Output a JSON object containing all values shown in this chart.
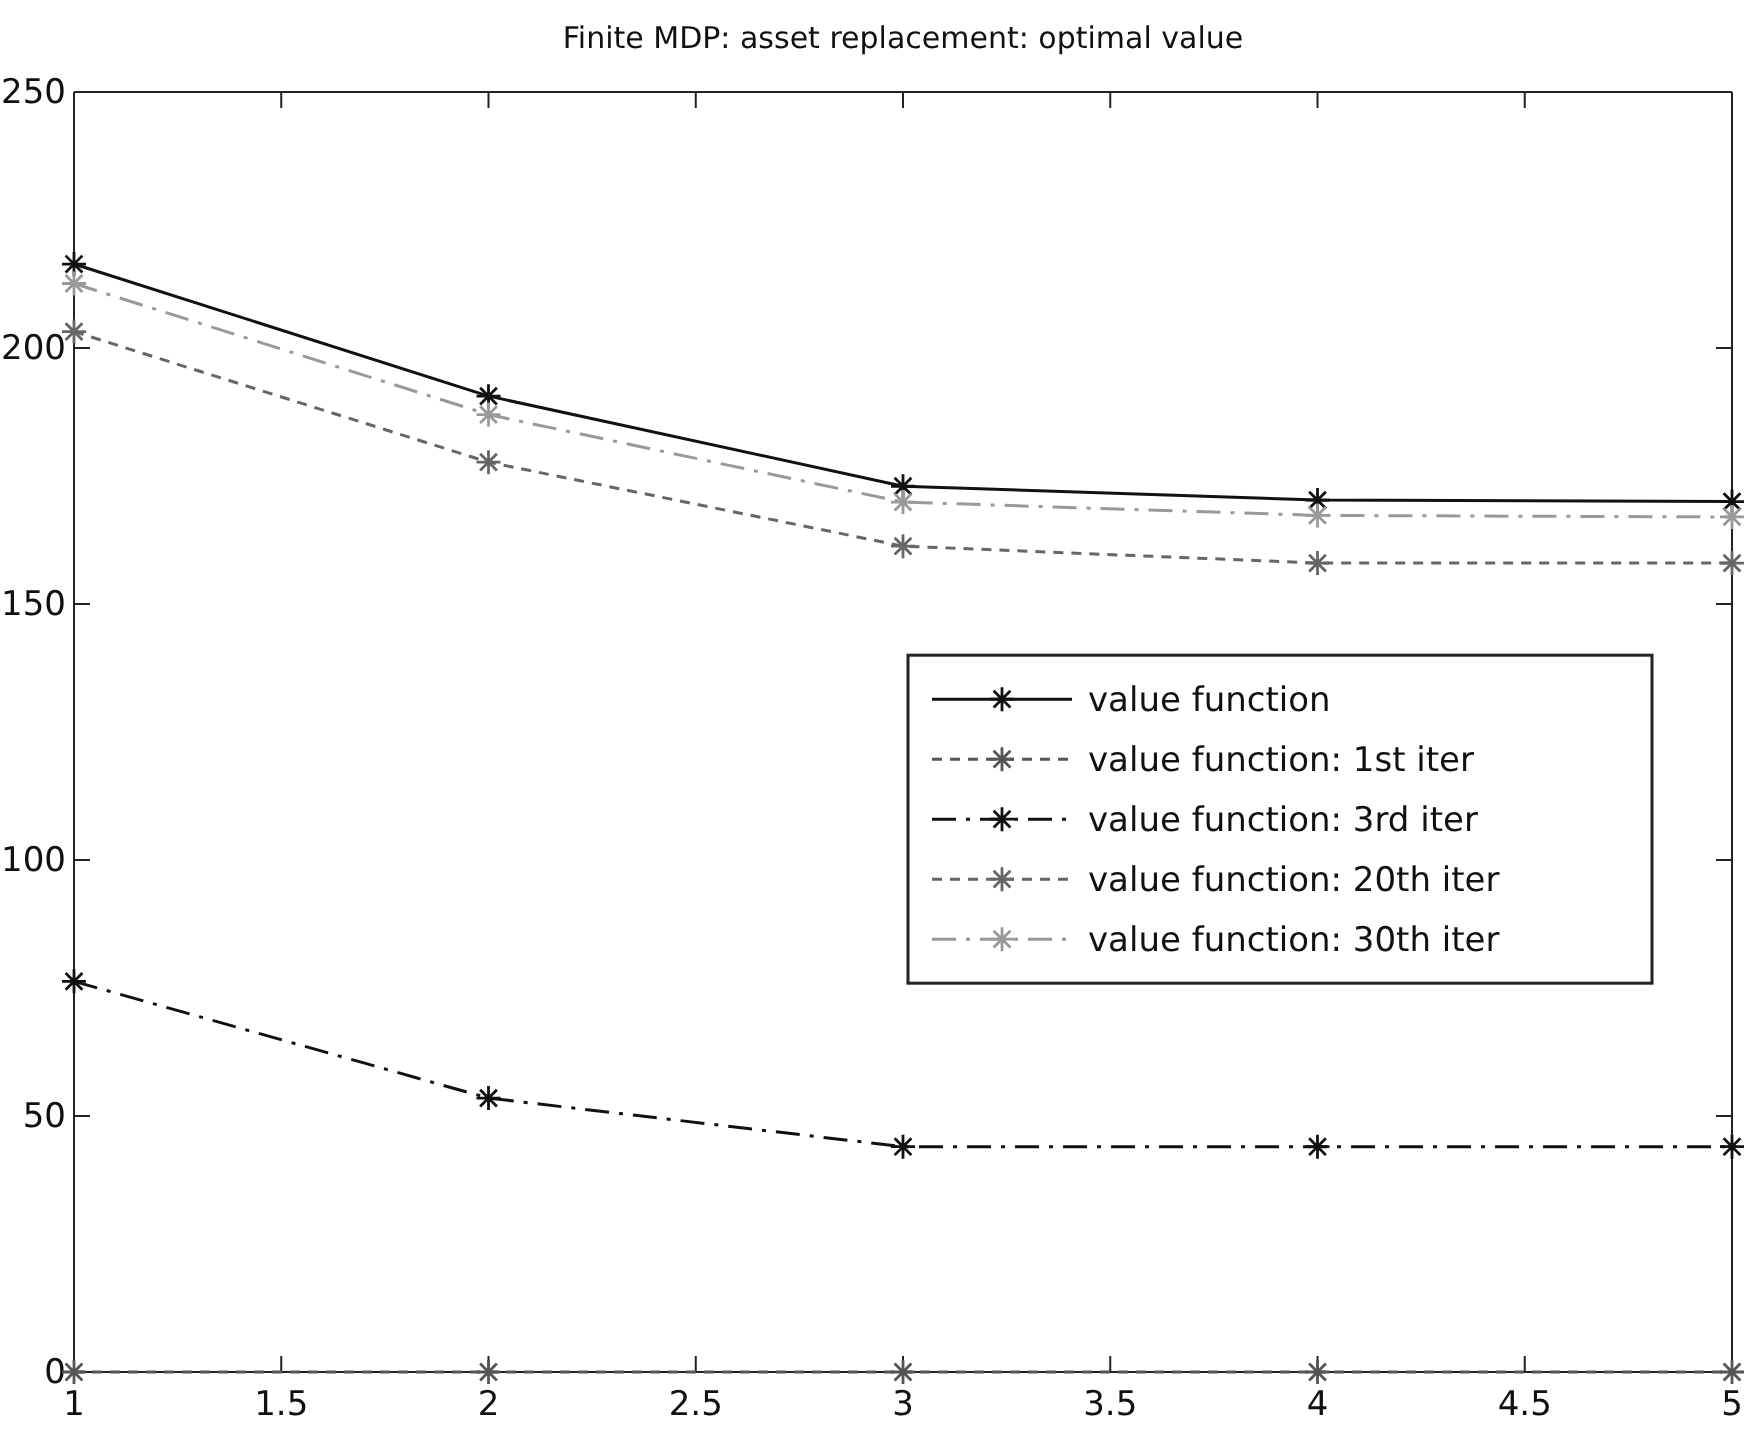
{
  "chart_data": {
    "type": "line",
    "title": "Finite MDP: asset replacement: optimal value",
    "x": [
      1,
      2,
      3,
      4,
      5
    ],
    "series": [
      {
        "name": "value function",
        "color": "#111111",
        "line_style": "solid",
        "values": [
          216.4,
          190.6,
          173,
          170.3,
          170
        ]
      },
      {
        "name": "value function: 1st iter",
        "color": "#555555",
        "line_style": "dotted",
        "values": [
          0,
          0,
          0,
          0,
          0
        ]
      },
      {
        "name": "value function: 3rd iter",
        "color": "#111111",
        "line_style": "dashed",
        "values": [
          76.3,
          53.5,
          44,
          44,
          44
        ]
      },
      {
        "name": "value function: 20th iter",
        "color": "#666666",
        "line_style": "dotted",
        "values": [
          203.2,
          177.7,
          161.3,
          158,
          158
        ]
      },
      {
        "name": "value function: 30th iter",
        "color": "#999999",
        "line_style": "dashed",
        "values": [
          212.6,
          187,
          169.9,
          167.3,
          167
        ]
      }
    ],
    "xlim": [
      1,
      5
    ],
    "xticks": [
      1,
      1.5,
      2,
      2.5,
      3,
      3.5,
      4,
      4.5,
      5
    ],
    "ylim": [
      0,
      250
    ],
    "yticks": [
      0,
      50,
      100,
      150,
      200,
      250
    ],
    "marker": "cross",
    "grid": false,
    "legend": "right"
  }
}
